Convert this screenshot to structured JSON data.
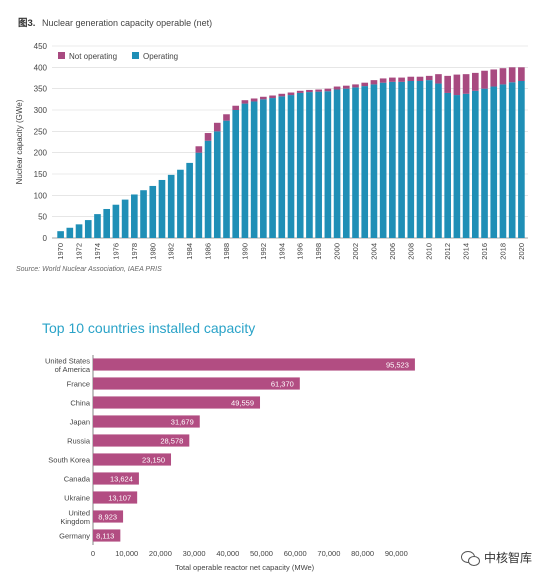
{
  "figure_label": "图3.",
  "watermark": {
    "text": "中核智库",
    "icon": "wechat-icon"
  },
  "colors": {
    "operating": "#1f8fb6",
    "not_operating": "#a84a80",
    "top10": "#b24d82",
    "title2": "#2aa3c8",
    "grid": "#d8d8d8"
  },
  "chart_data": [
    {
      "type": "bar",
      "stacked": true,
      "title": "Nuclear generation capacity operable (net)",
      "ylabel": "Nuclear capacity (GWe)",
      "xlabel": "",
      "source": "Source: World Nuclear Association, IAEA PRIS",
      "ylim": [
        0,
        450
      ],
      "yticks": [
        0,
        50,
        100,
        150,
        200,
        250,
        300,
        350,
        400,
        450
      ],
      "legend": {
        "position": "top-left",
        "entries": [
          "Not operating",
          "Operating"
        ]
      },
      "x_tick_labels": [
        "1970",
        "1972",
        "1974",
        "1976",
        "1978",
        "1980",
        "1982",
        "1984",
        "1986",
        "1988",
        "1990",
        "1992",
        "1994",
        "1996",
        "1998",
        "2000",
        "2002",
        "2004",
        "2006",
        "2008",
        "2010",
        "2012",
        "2014",
        "2016",
        "2018",
        "2020"
      ],
      "categories": [
        "1970",
        "1971",
        "1972",
        "1973",
        "1974",
        "1975",
        "1976",
        "1977",
        "1978",
        "1979",
        "1980",
        "1981",
        "1982",
        "1983",
        "1984",
        "1985",
        "1986",
        "1987",
        "1988",
        "1989",
        "1990",
        "1991",
        "1992",
        "1993",
        "1994",
        "1995",
        "1996",
        "1997",
        "1998",
        "1999",
        "2000",
        "2001",
        "2002",
        "2003",
        "2004",
        "2005",
        "2006",
        "2007",
        "2008",
        "2009",
        "2010",
        "2011",
        "2012",
        "2013",
        "2014",
        "2015",
        "2016",
        "2017",
        "2018",
        "2019",
        "2020"
      ],
      "series": [
        {
          "name": "Operating",
          "values": [
            16,
            24,
            32,
            42,
            56,
            68,
            78,
            90,
            102,
            112,
            122,
            136,
            148,
            160,
            176,
            200,
            228,
            250,
            275,
            300,
            315,
            320,
            325,
            328,
            332,
            335,
            340,
            342,
            343,
            344,
            348,
            350,
            353,
            356,
            360,
            364,
            366,
            366,
            368,
            368,
            370,
            362,
            340,
            335,
            338,
            345,
            350,
            355,
            360,
            365,
            368
          ]
        },
        {
          "name": "Not operating",
          "values": [
            0,
            0,
            0,
            0,
            0,
            0,
            0,
            0,
            0,
            0,
            0,
            0,
            0,
            0,
            0,
            15,
            18,
            20,
            15,
            10,
            8,
            7,
            6,
            6,
            6,
            6,
            5,
            5,
            5,
            6,
            7,
            7,
            7,
            8,
            10,
            10,
            10,
            10,
            10,
            10,
            10,
            22,
            40,
            48,
            46,
            42,
            42,
            40,
            38,
            35,
            32
          ]
        }
      ]
    },
    {
      "type": "bar",
      "orientation": "horizontal",
      "title": "Top 10 countries installed capacity",
      "xlabel": "Total operable reactor net capacity (MWe)",
      "ylabel": "",
      "xlim": [
        0,
        100000
      ],
      "xticks": [
        0,
        10000,
        20000,
        30000,
        40000,
        50000,
        60000,
        70000,
        80000,
        90000
      ],
      "xtick_labels": [
        "0",
        "10,000",
        "20,000",
        "30,000",
        "40,000",
        "50,000",
        "60,000",
        "70,000",
        "80,000",
        "90,000"
      ],
      "categories": [
        [
          "United States",
          "of America"
        ],
        [
          "France"
        ],
        [
          "China"
        ],
        [
          "Japan"
        ],
        [
          "Russia"
        ],
        [
          "South Korea"
        ],
        [
          "Canada"
        ],
        [
          "Ukraine"
        ],
        [
          "United",
          "Kingdom"
        ],
        [
          "Germany"
        ]
      ],
      "values": [
        95523,
        61370,
        49559,
        31679,
        28578,
        23150,
        13624,
        13107,
        8923,
        8113
      ],
      "value_labels": [
        "95,523",
        "61,370",
        "49,559",
        "31,679",
        "28,578",
        "23,150",
        "13,624",
        "13,107",
        "8,923",
        "8,113"
      ]
    }
  ]
}
